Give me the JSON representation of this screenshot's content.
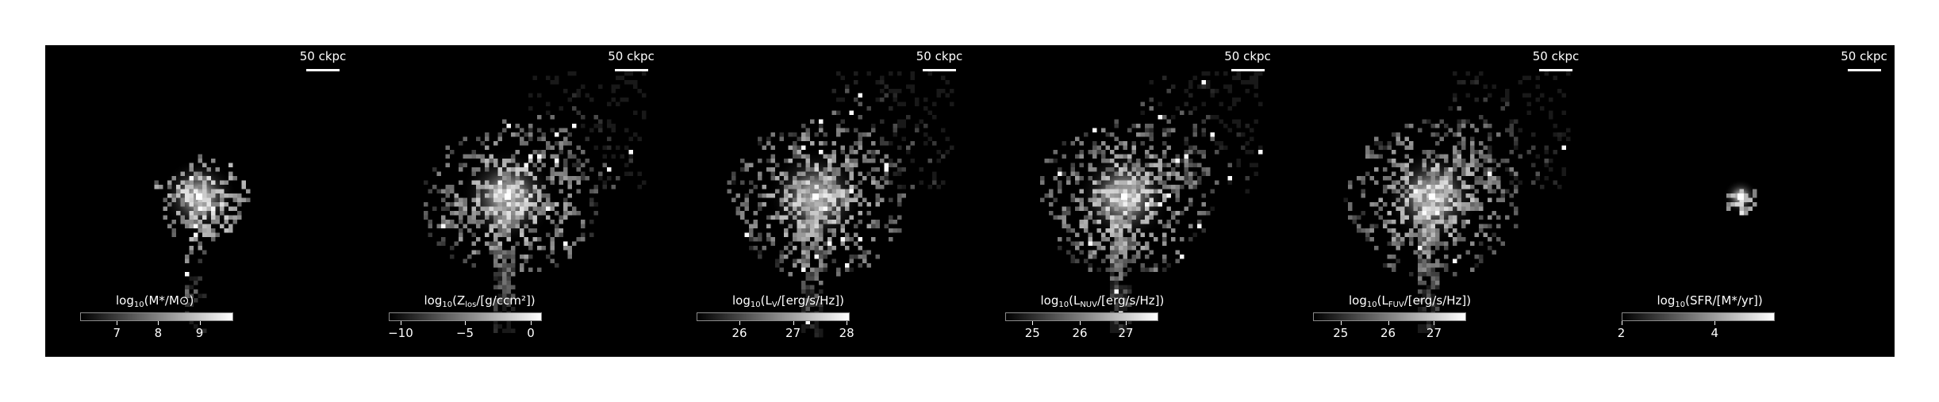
{
  "panels": [
    {
      "scale_label": "50 ckpc",
      "colorbar_label": "log10(M*/M⊙)",
      "label_parts": {
        "pre": "log",
        "sub": "10",
        "post": "(M*/M⊙)"
      },
      "ticks": [
        {
          "label": "7",
          "frac": 0.24
        },
        {
          "label": "8",
          "frac": 0.51
        },
        {
          "label": "9",
          "frac": 0.78
        }
      ],
      "halo": "compact"
    },
    {
      "scale_label": "50 ckpc",
      "colorbar_label": "log10(Zlos/[g/ccm2])",
      "label_parts": {
        "pre": "log",
        "sub": "10",
        "post": "(Z",
        "sub2": "los",
        "post2": "/[g/ccm²])"
      },
      "ticks": [
        {
          "label": "−10",
          "frac": 0.08
        },
        {
          "label": "−5",
          "frac": 0.5
        },
        {
          "label": "0",
          "frac": 0.93
        }
      ],
      "halo": "extended"
    },
    {
      "scale_label": "50 ckpc",
      "colorbar_label": "log10(LV/[erg/s/Hz])",
      "label_parts": {
        "pre": "log",
        "sub": "10",
        "post": "(L",
        "sub2": "V",
        "post2": "/[erg/s/Hz])"
      },
      "ticks": [
        {
          "label": "26",
          "frac": 0.28
        },
        {
          "label": "27",
          "frac": 0.63
        },
        {
          "label": "28",
          "frac": 0.98
        }
      ],
      "halo": "extended"
    },
    {
      "scale_label": "50 ckpc",
      "colorbar_label": "log10(LNUV/[erg/s/Hz])",
      "label_parts": {
        "pre": "log",
        "sub": "10",
        "post": "(L",
        "sub2": "NUV",
        "post2": "/[erg/s/Hz])"
      },
      "ticks": [
        {
          "label": "25",
          "frac": 0.18
        },
        {
          "label": "26",
          "frac": 0.49
        },
        {
          "label": "27",
          "frac": 0.79
        }
      ],
      "halo": "extended"
    },
    {
      "scale_label": "50 ckpc",
      "colorbar_label": "log10(LFUV/[erg/s/Hz])",
      "label_parts": {
        "pre": "log",
        "sub": "10",
        "post": "(L",
        "sub2": "FUV",
        "post2": "/[erg/s/Hz])"
      },
      "ticks": [
        {
          "label": "25",
          "frac": 0.18
        },
        {
          "label": "26",
          "frac": 0.49
        },
        {
          "label": "27",
          "frac": 0.79
        }
      ],
      "halo": "extended"
    },
    {
      "scale_label": "50 ckpc",
      "colorbar_label": "log10(SFR/[M*/yr])",
      "label_parts": {
        "pre": "log",
        "sub": "10",
        "post": "(SFR/[M*/yr])"
      },
      "ticks": [
        {
          "label": "2",
          "frac": 0.0
        },
        {
          "label": "4",
          "frac": 0.61
        }
      ],
      "halo": "point"
    }
  ],
  "colors": {
    "background": "#000000",
    "foreground": "#ffffff",
    "page": "#ffffff"
  }
}
